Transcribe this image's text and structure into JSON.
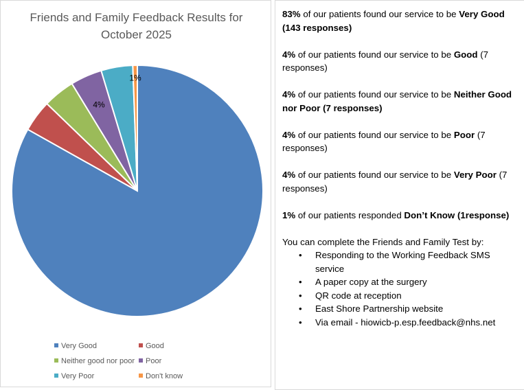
{
  "chart_data": {
    "type": "pie",
    "title": "Friends and Family Feedback Results for October 2025",
    "title_lines": [
      "Friends and Family Feedback Results for",
      "October 2025"
    ],
    "categories": [
      "Very Good",
      "Good",
      "Neither good nor poor",
      "Poor",
      "Very Poor",
      "Don't know"
    ],
    "values": [
      143,
      7,
      7,
      7,
      7,
      1
    ],
    "colors": [
      "#4f81bd",
      "#c0504d",
      "#9bbb59",
      "#8064a2",
      "#4bacc6",
      "#f79646"
    ],
    "data_labels": [
      "",
      "",
      "",
      "4%",
      "",
      "1%"
    ],
    "start_angle": "12 o'clock, clockwise",
    "legend": "bottom"
  },
  "summary": [
    {
      "pct": "83%",
      "mid": " of our patients found our service to be ",
      "bold": "Very Good (143 responses)",
      "tail": ""
    },
    {
      "pct": "4%",
      "mid": " of our patients found our service to be ",
      "bold": "Good",
      "tail": " (7 responses)"
    },
    {
      "pct": "4%",
      "mid": " of our patients found our service to be ",
      "bold": "Neither Good nor Poor (7 responses)",
      "tail": ""
    },
    {
      "pct": "4%",
      "mid": " of our patients found our service to be ",
      "bold": "Poor",
      "tail": " (7 responses)"
    },
    {
      "pct": "4%",
      "mid": " of our patients found our service to be ",
      "bold": "Very Poor",
      "tail": " (7 responses)"
    },
    {
      "pct": "1%",
      "mid": " of our patients responded ",
      "bold": "Don’t Know (1response)",
      "tail": ""
    }
  ],
  "methods": {
    "intro": "You can complete the Friends and Family Test by:",
    "items": [
      "Responding to the Working Feedback SMS service",
      "A paper copy at the surgery",
      "QR code at reception",
      "East Shore Partnership website",
      "Via email - hiowicb-p.esp.feedback@nhs.net"
    ]
  }
}
